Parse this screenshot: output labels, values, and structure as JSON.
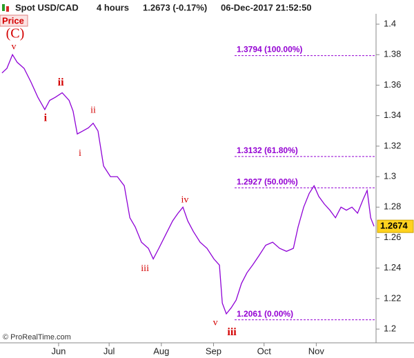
{
  "chart_data": {
    "type": "line",
    "symbol": "Spot USD/CAD",
    "timeframe": "4 hours",
    "last": "1.2673 (-0.17%)",
    "datetime": "06-Dec-2017 21:52:50",
    "panel_label": "Price",
    "copyright": "© ProRealTime.com",
    "xlim": [
      117.2,
      340.5
    ],
    "ylim": [
      1.191,
      1.4068
    ],
    "xticks": [
      {
        "value": 152,
        "label": "Jun"
      },
      {
        "value": 182,
        "label": "Jul"
      },
      {
        "value": 213,
        "label": "Aug"
      },
      {
        "value": 244,
        "label": "Sep"
      },
      {
        "value": 274,
        "label": "Oct"
      },
      {
        "value": 305,
        "label": "Nov"
      }
    ],
    "yticks": [
      1.2,
      1.22,
      1.24,
      1.26,
      1.28,
      1.3,
      1.32,
      1.34,
      1.36,
      1.38,
      1.4
    ],
    "current_price": 1.2674,
    "series": [
      {
        "name": "Spot USD/CAD",
        "color": "#8e00d6",
        "x": [
          118.4,
          121.3,
          124.6,
          127.4,
          131.5,
          135.6,
          139.7,
          143.8,
          146.7,
          150,
          154.1,
          158.2,
          160.6,
          163.1,
          166.4,
          169.7,
          172.5,
          175.4,
          178.7,
          182.8,
          186.9,
          191,
          194.3,
          197.5,
          201.2,
          205.3,
          208.2,
          211.5,
          215.6,
          219.7,
          222.9,
          225.8,
          228.7,
          232,
          236,
          240.1,
          244.2,
          247.5,
          249.2,
          251.6,
          254.5,
          257.4,
          260.6,
          263.9,
          267.2,
          270.9,
          275,
          279.1,
          283.2,
          287.3,
          291.4,
          294.2,
          297.5,
          300.8,
          303.7,
          306.5,
          309.8,
          313.1,
          316.4,
          319.7,
          322.9,
          326.2,
          329.5,
          332.8,
          335.2,
          337.3,
          339.3
        ],
        "values": [
          1.368,
          1.371,
          1.38,
          1.375,
          1.371,
          1.362,
          1.352,
          1.344,
          1.35,
          1.352,
          1.355,
          1.35,
          1.343,
          1.328,
          1.33,
          1.332,
          1.335,
          1.33,
          1.307,
          1.3,
          1.3,
          1.294,
          1.273,
          1.267,
          1.257,
          1.253,
          1.246,
          1.253,
          1.262,
          1.271,
          1.276,
          1.28,
          1.271,
          1.264,
          1.257,
          1.253,
          1.246,
          1.242,
          1.217,
          1.21,
          1.214,
          1.219,
          1.23,
          1.237,
          1.242,
          1.248,
          1.255,
          1.257,
          1.253,
          1.251,
          1.253,
          1.267,
          1.28,
          1.289,
          1.294,
          1.287,
          1.282,
          1.278,
          1.273,
          1.28,
          1.278,
          1.28,
          1.276,
          1.285,
          1.291,
          1.273,
          1.2674
        ]
      }
    ],
    "fib_levels": [
      {
        "value": 1.3794,
        "label": "1.3794 (100.00%)"
      },
      {
        "value": 1.3132,
        "label": "1.3132 (61.80%)"
      },
      {
        "value": 1.2927,
        "label": "1.2927 (50.00%)"
      },
      {
        "value": 1.2061,
        "label": "1.2061 (0.00%)"
      }
    ],
    "fib_color": "#9400d3",
    "annotations": [
      {
        "text": "(C)",
        "x": 126.2,
        "y": 1.3932,
        "bold": false
      },
      {
        "text": "v",
        "x": 125.4,
        "y": 1.385,
        "bold": false
      },
      {
        "text": "i",
        "x": 144.2,
        "y": 1.338,
        "bold": true
      },
      {
        "text": "ii",
        "x": 153.3,
        "y": 1.3615,
        "bold": true
      },
      {
        "text": "i",
        "x": 164.7,
        "y": 1.315,
        "bold": false
      },
      {
        "text": "ii",
        "x": 172.5,
        "y": 1.3434,
        "bold": false
      },
      {
        "text": "iii",
        "x": 203.3,
        "y": 1.2394,
        "bold": false
      },
      {
        "text": "iv",
        "x": 227,
        "y": 1.2846,
        "bold": false
      },
      {
        "text": "v",
        "x": 245.1,
        "y": 1.204,
        "bold": false
      },
      {
        "text": "iii",
        "x": 254.9,
        "y": 1.1977,
        "bold": true
      }
    ]
  }
}
